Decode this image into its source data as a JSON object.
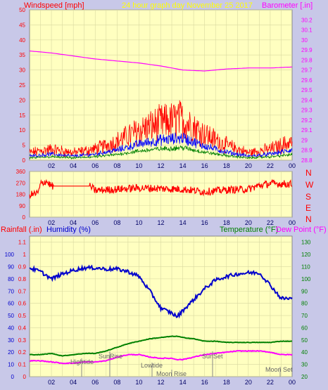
{
  "colors": {
    "background": "#c8c8e8",
    "plot_bg": "#ffffc0",
    "grid": "#d8d8a0",
    "windspeed": "#ff0000",
    "wind_mid": "#0000ff",
    "wind_low": "#008000",
    "barometer": "#ff00ff",
    "direction": "#ff0000",
    "humidity": "#0000cc",
    "temperature": "#008000",
    "dewpoint": "#ff00ff",
    "title": "#ffff00",
    "axis_red": "#ff0000",
    "axis_magenta": "#ff00ff",
    "axis_blue": "#0000cc",
    "axis_green": "#008000",
    "tick": "#000066",
    "event": "#666666"
  },
  "header": {
    "windspeed_label": "Windspeed [mph]",
    "title": "24 hour graph day November 25 2017",
    "barometer_label": "Barometer [.in]"
  },
  "compass": [
    "N",
    "W",
    "S",
    "E",
    "N"
  ],
  "bottom_header": {
    "rainfall_label": "Rainfall (.in)",
    "humidity_label": "Humidity (%)",
    "temperature_label": "Temperature (°F)",
    "dewpoint_label": "Dew Point (°F)"
  },
  "events": {
    "hightide": "Hightide",
    "sunrise": "SunRise",
    "lowtide": "Lowtide",
    "moonrise": "Moon Rise",
    "sunset": "SunSet",
    "moonset": "Moon Set"
  },
  "chart_data": [
    {
      "type": "line",
      "x_ticks": [
        "02",
        "04",
        "06",
        "08",
        "10",
        "12",
        "14",
        "16",
        "18",
        "20",
        "22",
        "00"
      ],
      "y_left_ticks": [
        0,
        5,
        10,
        15,
        20,
        25,
        30,
        35,
        40,
        45,
        50
      ],
      "y_left_range": [
        0,
        50
      ],
      "y_right_ticks": [
        28.8,
        28.9,
        29,
        29.1,
        29.2,
        29.3,
        29.4,
        29.5,
        29.6,
        29.7,
        29.8,
        29.9,
        30,
        30.1,
        30.2
      ],
      "y_right_range": [
        28.8,
        30.3
      ],
      "x": [
        0,
        2,
        4,
        6,
        8,
        10,
        12,
        14,
        16,
        18,
        20,
        22,
        24
      ],
      "series": [
        {
          "name": "Windspeed [mph]",
          "axis": "left",
          "values": [
            2,
            3,
            2,
            3,
            5,
            8,
            10,
            11,
            7,
            4,
            2,
            3,
            5
          ]
        },
        {
          "name": "Barometer [.in]",
          "axis": "right",
          "values": [
            29.89,
            29.87,
            29.84,
            29.81,
            29.79,
            29.77,
            29.74,
            29.7,
            29.69,
            29.71,
            29.72,
            29.72,
            29.73
          ]
        }
      ],
      "grid": true
    },
    {
      "type": "line",
      "x_ticks": [
        "02",
        "04",
        "06",
        "08",
        "10",
        "12",
        "14",
        "16",
        "18",
        "20",
        "22",
        "00"
      ],
      "y_ticks": [
        0,
        90,
        180,
        270,
        360
      ],
      "y_range": [
        0,
        360
      ],
      "x": [
        0,
        0.8,
        1,
        1.5,
        2,
        5.5,
        6,
        8,
        10,
        12,
        14,
        16,
        18,
        20,
        21,
        22,
        24
      ],
      "values": [
        175,
        190,
        260,
        285,
        245,
        245,
        210,
        220,
        230,
        225,
        220,
        200,
        215,
        220,
        250,
        265,
        260
      ],
      "grid": true
    },
    {
      "type": "line",
      "x_ticks": [
        "02",
        "04",
        "06",
        "08",
        "10",
        "12",
        "14",
        "16",
        "18",
        "20",
        "22",
        "00"
      ],
      "y_left_ticks": [
        0,
        0.1,
        0.2,
        0.3,
        0.4,
        0.5,
        0.6,
        0.7,
        0.8,
        0.9,
        1,
        1.1
      ],
      "y_left_range": [
        0,
        1.15
      ],
      "y_pct_ticks": [
        0,
        10,
        20,
        30,
        40,
        50,
        60,
        70,
        80,
        90,
        100
      ],
      "y_right_ticks": [
        20,
        30,
        40,
        50,
        60,
        70,
        80,
        90,
        100,
        110,
        120,
        130
      ],
      "y_right_range": [
        20,
        135
      ],
      "x": [
        0,
        1,
        2,
        3,
        4,
        5,
        6,
        7,
        8,
        9,
        10,
        11,
        12,
        13,
        13.5,
        14,
        15,
        16,
        17,
        18,
        19,
        20,
        21,
        22,
        23,
        24
      ],
      "series": [
        {
          "name": "Humidity (%)",
          "axis": "pct",
          "values": [
            89,
            86,
            80,
            84,
            87,
            89,
            89,
            88,
            88,
            86,
            82,
            70,
            56,
            52,
            49,
            54,
            63,
            72,
            79,
            82,
            84,
            85,
            85,
            75,
            64,
            64
          ]
        },
        {
          "name": "Temperature (°F)",
          "axis": "right",
          "values": [
            38,
            38,
            39,
            37,
            38,
            39,
            39,
            41,
            44,
            47,
            49,
            51,
            52,
            53,
            53,
            52,
            51,
            49,
            49,
            48,
            48,
            48,
            48,
            48,
            49,
            49
          ]
        },
        {
          "name": "Dew Point (°F)",
          "axis": "right",
          "values": [
            33,
            33,
            32,
            31,
            31,
            32,
            32,
            33,
            36,
            38,
            38,
            36,
            35,
            35,
            34,
            34,
            36,
            38,
            39,
            40,
            41,
            41,
            41,
            40,
            38,
            38
          ]
        }
      ],
      "grid": true
    }
  ]
}
